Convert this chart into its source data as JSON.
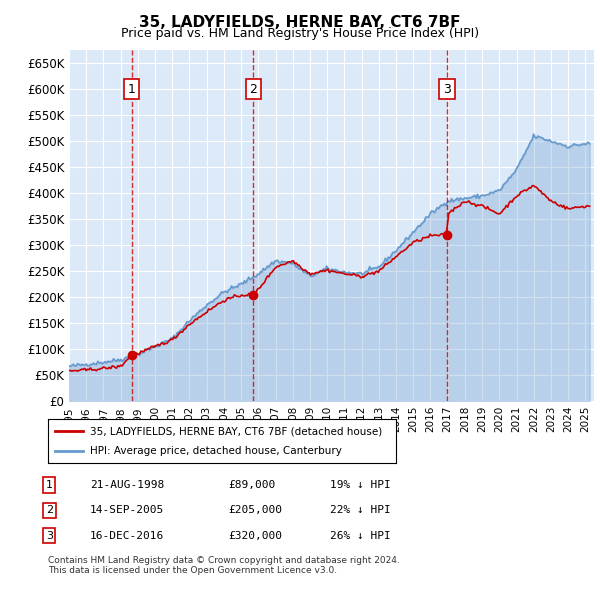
{
  "title": "35, LADYFIELDS, HERNE BAY, CT6 7BF",
  "subtitle": "Price paid vs. HM Land Registry's House Price Index (HPI)",
  "xlabel": "",
  "ylabel": "",
  "ylim": [
    0,
    675000
  ],
  "yticks": [
    0,
    50000,
    100000,
    150000,
    200000,
    250000,
    300000,
    350000,
    400000,
    450000,
    500000,
    550000,
    600000,
    650000
  ],
  "ytick_labels": [
    "£0",
    "£50K",
    "£100K",
    "£150K",
    "£200K",
    "£250K",
    "£300K",
    "£350K",
    "£400K",
    "£450K",
    "£500K",
    "£550K",
    "£600K",
    "£650K"
  ],
  "xlim_start": 1995.0,
  "xlim_end": 2025.5,
  "background_color": "#dce9f8",
  "plot_bg_color": "#dce9f8",
  "grid_color": "white",
  "hpi_color": "#6699cc",
  "price_color": "#cc0000",
  "purchase_dates": [
    1998.644,
    2005.706,
    2016.958
  ],
  "purchase_prices": [
    89000,
    205000,
    320000
  ],
  "purchase_labels": [
    "1",
    "2",
    "3"
  ],
  "legend_label_price": "35, LADYFIELDS, HERNE BAY, CT6 7BF (detached house)",
  "legend_label_hpi": "HPI: Average price, detached house, Canterbury",
  "table_data": [
    [
      "1",
      "21-AUG-1998",
      "£89,000",
      "19% ↓ HPI"
    ],
    [
      "2",
      "14-SEP-2005",
      "£205,000",
      "22% ↓ HPI"
    ],
    [
      "3",
      "16-DEC-2016",
      "£320,000",
      "26% ↓ HPI"
    ]
  ],
  "footer": "Contains HM Land Registry data © Crown copyright and database right 2024.\nThis data is licensed under the Open Government Licence v3.0.",
  "hpi_line_color": "#aabbdd",
  "vline_color": "#cc0000"
}
